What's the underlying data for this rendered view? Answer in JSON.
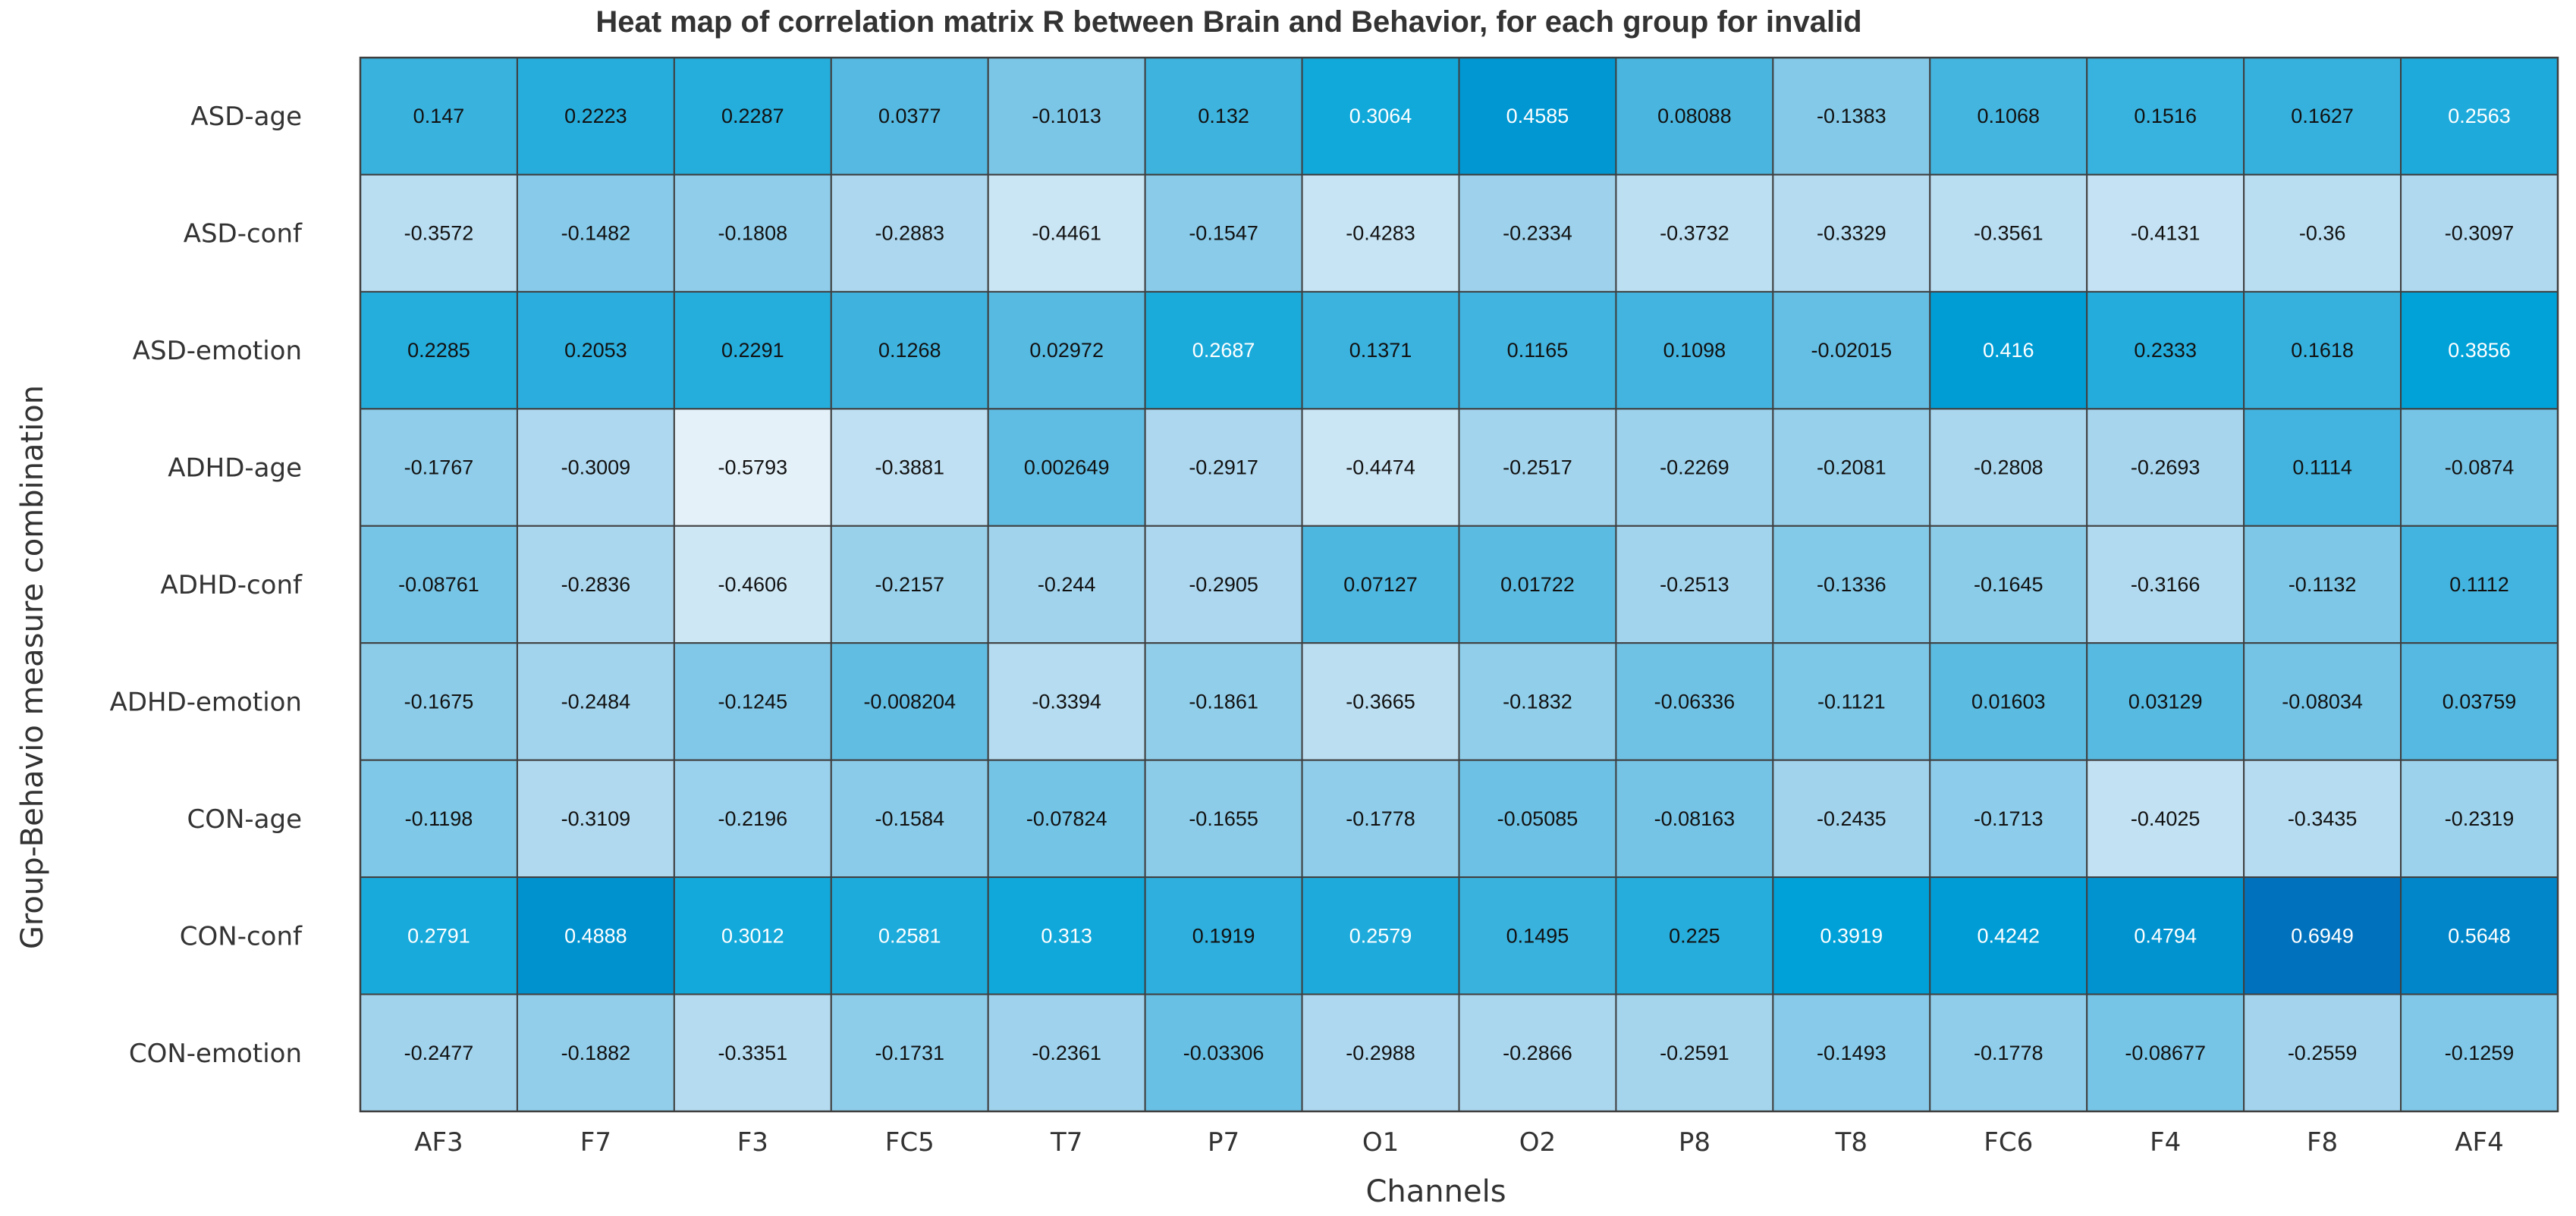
{
  "chart_data": {
    "type": "heatmap",
    "title": "Heat map of correlation matrix R between Brain and Behavior, for each group for invalid",
    "xlabel": "Channels",
    "ylabel": "Group-Behavio measure combination",
    "columns": [
      "AF3",
      "F7",
      "F3",
      "FC5",
      "T7",
      "P7",
      "O1",
      "O2",
      "P8",
      "T8",
      "FC6",
      "F4",
      "F8",
      "AF4"
    ],
    "rows": [
      "ASD-age",
      "ASD-conf",
      "ASD-emotion",
      "ADHD-age",
      "ADHD-conf",
      "ADHD-emotion",
      "CON-age",
      "CON-conf",
      "CON-emotion"
    ],
    "values": [
      [
        0.147,
        0.2223,
        0.2287,
        0.0377,
        -0.1013,
        0.132,
        0.3064,
        0.4585,
        0.08088,
        -0.1383,
        0.1068,
        0.1516,
        0.1627,
        0.2563
      ],
      [
        -0.3572,
        -0.1482,
        -0.1808,
        -0.2883,
        -0.4461,
        -0.1547,
        -0.4283,
        -0.2334,
        -0.3732,
        -0.3329,
        -0.3561,
        -0.4131,
        -0.36,
        -0.3097
      ],
      [
        0.2285,
        0.2053,
        0.2291,
        0.1268,
        0.02972,
        0.2687,
        0.1371,
        0.1165,
        0.1098,
        -0.02015,
        0.416,
        0.2333,
        0.1618,
        0.3856
      ],
      [
        -0.1767,
        -0.3009,
        -0.5793,
        -0.3881,
        0.002649,
        -0.2917,
        -0.4474,
        -0.2517,
        -0.2269,
        -0.2081,
        -0.2808,
        -0.2693,
        0.1114,
        -0.0874
      ],
      [
        -0.08761,
        -0.2836,
        -0.4606,
        -0.2157,
        -0.244,
        -0.2905,
        0.07127,
        0.01722,
        -0.2513,
        -0.1336,
        -0.1645,
        -0.3166,
        -0.1132,
        0.1112
      ],
      [
        -0.1675,
        -0.2484,
        -0.1245,
        -0.008204,
        -0.3394,
        -0.1861,
        -0.3665,
        -0.1832,
        -0.06336,
        -0.1121,
        0.01603,
        0.03129,
        -0.08034,
        0.03759
      ],
      [
        -0.1198,
        -0.3109,
        -0.2196,
        -0.1584,
        -0.07824,
        -0.1655,
        -0.1778,
        -0.05085,
        -0.08163,
        -0.2435,
        -0.1713,
        -0.4025,
        -0.3435,
        -0.2319
      ],
      [
        0.2791,
        0.4888,
        0.3012,
        0.2581,
        0.313,
        0.1919,
        0.2579,
        0.1495,
        0.225,
        0.3919,
        0.4242,
        0.4794,
        0.6949,
        0.5648
      ],
      [
        -0.2477,
        -0.1882,
        -0.3351,
        -0.1731,
        -0.2361,
        -0.03306,
        -0.2988,
        -0.2866,
        -0.2591,
        -0.1493,
        -0.1778,
        -0.08677,
        -0.2559,
        -0.1259
      ]
    ],
    "labels": [
      [
        "0.147",
        "0.2223",
        "0.2287",
        "0.0377",
        "-0.1013",
        "0.132",
        "0.3064",
        "0.4585",
        "0.08088",
        "-0.1383",
        "0.1068",
        "0.1516",
        "0.1627",
        "0.2563"
      ],
      [
        "-0.3572",
        "-0.1482",
        "-0.1808",
        "-0.2883",
        "-0.4461",
        "-0.1547",
        "-0.4283",
        "-0.2334",
        "-0.3732",
        "-0.3329",
        "-0.3561",
        "-0.4131",
        "-0.36",
        "-0.3097"
      ],
      [
        "0.2285",
        "0.2053",
        "0.2291",
        "0.1268",
        "0.02972",
        "0.2687",
        "0.1371",
        "0.1165",
        "0.1098",
        "-0.02015",
        "0.416",
        "0.2333",
        "0.1618",
        "0.3856"
      ],
      [
        "-0.1767",
        "-0.3009",
        "-0.5793",
        "-0.3881",
        "0.002649",
        "-0.2917",
        "-0.4474",
        "-0.2517",
        "-0.2269",
        "-0.2081",
        "-0.2808",
        "-0.2693",
        "0.1114",
        "-0.0874"
      ],
      [
        "-0.08761",
        "-0.2836",
        "-0.4606",
        "-0.2157",
        "-0.244",
        "-0.2905",
        "0.07127",
        "0.01722",
        "-0.2513",
        "-0.1336",
        "-0.1645",
        "-0.3166",
        "-0.1132",
        "0.1112"
      ],
      [
        "-0.1675",
        "-0.2484",
        "-0.1245",
        "-0.008204",
        "-0.3394",
        "-0.1861",
        "-0.3665",
        "-0.1832",
        "-0.06336",
        "-0.1121",
        "0.01603",
        "0.03129",
        "-0.08034",
        "0.03759"
      ],
      [
        "-0.1198",
        "-0.3109",
        "-0.2196",
        "-0.1584",
        "-0.07824",
        "-0.1655",
        "-0.1778",
        "-0.05085",
        "-0.08163",
        "-0.2435",
        "-0.1713",
        "-0.4025",
        "-0.3435",
        "-0.2319"
      ],
      [
        "0.2791",
        "0.4888",
        "0.3012",
        "0.2581",
        "0.313",
        "0.1919",
        "0.2579",
        "0.1495",
        "0.225",
        "0.3919",
        "0.4242",
        "0.4794",
        "0.6949",
        "0.5648"
      ],
      [
        "-0.2477",
        "-0.1882",
        "-0.3351",
        "-0.1731",
        "-0.2361",
        "-0.03306",
        "-0.2988",
        "-0.2866",
        "-0.2591",
        "-0.1493",
        "-0.1778",
        "-0.08677",
        "-0.2559",
        "-0.1259"
      ]
    ],
    "colormap": [
      "#e8f3fa",
      "#a9d6ee",
      "#52b8e0",
      "#00a4d9",
      "#0070bd"
    ],
    "color_range": [
      -0.6,
      0.7
    ],
    "grid": false
  }
}
